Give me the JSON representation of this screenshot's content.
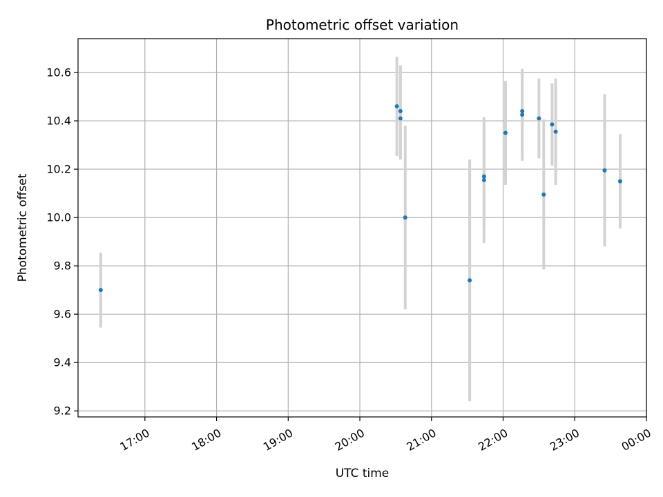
{
  "chart_data": {
    "type": "scatter",
    "title": "Photometric offset variation",
    "xlabel": "UTC time",
    "ylabel": "Photometric offset",
    "grid": true,
    "x_axis": {
      "type": "time",
      "range": [
        "16:04",
        "24:00"
      ],
      "tick_values": [
        "17:00",
        "18:00",
        "19:00",
        "20:00",
        "21:00",
        "22:00",
        "23:00",
        "24:00"
      ],
      "tick_labels": [
        "17:00",
        "18:00",
        "19:00",
        "20:00",
        "21:00",
        "22:00",
        "23:00",
        "00:00"
      ]
    },
    "y_axis": {
      "range": [
        9.175,
        10.74
      ],
      "ticks": [
        9.2,
        9.4,
        9.6,
        9.8,
        10.0,
        10.2,
        10.4,
        10.6
      ],
      "tick_labels": [
        "9.2",
        "9.4",
        "9.6",
        "9.8",
        "10.0",
        "10.2",
        "10.4",
        "10.6"
      ]
    },
    "colors": {
      "points": "#1f77b4",
      "errorbars": "#d3d3d3",
      "grid": "#b0b0b0"
    },
    "points": [
      {
        "t": "16:23",
        "y": 9.7,
        "err": 0.155
      },
      {
        "t": "20:31",
        "y": 10.46,
        "err": 0.205
      },
      {
        "t": "20:34",
        "y": 10.41,
        "err": 0.17
      },
      {
        "t": "20:34",
        "y": 10.44,
        "err": 0.19
      },
      {
        "t": "20:38",
        "y": 10.0,
        "err": 0.38
      },
      {
        "t": "21:32",
        "y": 9.74,
        "err": 0.5
      },
      {
        "t": "21:44",
        "y": 10.155,
        "err": 0.26
      },
      {
        "t": "21:44",
        "y": 10.17,
        "err": 0.21
      },
      {
        "t": "22:02",
        "y": 10.35,
        "err": 0.215
      },
      {
        "t": "22:16",
        "y": 10.44,
        "err": 0.16
      },
      {
        "t": "22:16",
        "y": 10.425,
        "err": 0.19
      },
      {
        "t": "22:30",
        "y": 10.41,
        "err": 0.165
      },
      {
        "t": "22:34",
        "y": 10.095,
        "err": 0.31
      },
      {
        "t": "22:41",
        "y": 10.385,
        "err": 0.17
      },
      {
        "t": "22:44",
        "y": 10.355,
        "err": 0.22
      },
      {
        "t": "23:25",
        "y": 10.195,
        "err": 0.315
      },
      {
        "t": "23:38",
        "y": 10.15,
        "err": 0.195
      }
    ]
  }
}
